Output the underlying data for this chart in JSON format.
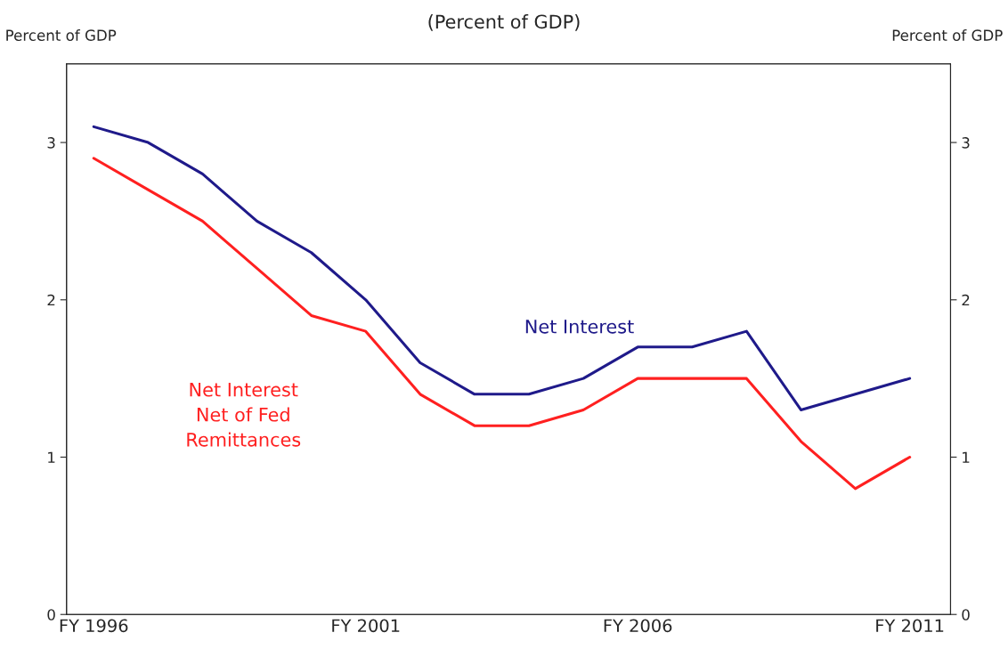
{
  "chart_data": {
    "type": "line",
    "title": "(Percent of GDP)",
    "ylabel": "Percent of GDP",
    "y2label": "Percent of GDP",
    "categories": [
      "FY 1996",
      null,
      null,
      null,
      null,
      "FY 2001",
      null,
      null,
      null,
      null,
      "FY 2006",
      null,
      null,
      null,
      null,
      "FY 2011"
    ],
    "series": [
      {
        "name": "Net Interest",
        "color": "#1f1a8a",
        "values": [
          3.1,
          3.0,
          2.8,
          2.5,
          2.3,
          2.0,
          1.6,
          1.4,
          1.4,
          1.5,
          1.7,
          1.7,
          1.8,
          1.3,
          1.4,
          1.5
        ]
      },
      {
        "name": "Net Interest\nNet of Fed\nRemittances",
        "color": "#ff2020",
        "values": [
          2.9,
          2.7,
          2.5,
          2.2,
          1.9,
          1.8,
          1.4,
          1.2,
          1.2,
          1.3,
          1.5,
          1.5,
          1.5,
          1.1,
          0.8,
          1.0
        ]
      }
    ],
    "ylim": [
      0,
      3.5
    ],
    "yticks": [
      0,
      1,
      2,
      3
    ],
    "y2lim": [
      0,
      3.5
    ],
    "y2ticks": [
      0,
      1,
      2,
      3
    ],
    "grid": false,
    "legend": false,
    "marker": "none",
    "line_style": "solid"
  }
}
